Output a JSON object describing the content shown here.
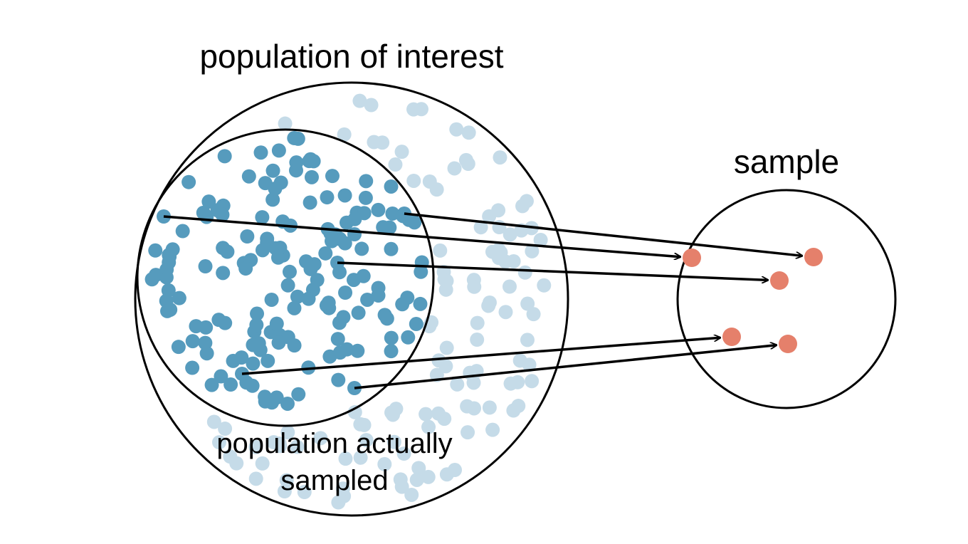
{
  "labels": {
    "population_of_interest": "population of interest",
    "sample": "sample",
    "population_actually_sampled_line1": "population actually",
    "population_actually_sampled_line2": "sampled"
  },
  "colors": {
    "background": "#ffffff",
    "outline": "#000000",
    "sampled_population_dot": "#569bbd",
    "unsampled_population_dot": "#c5dbe8",
    "sample_dot": "#e5806b",
    "arrow": "#000000"
  },
  "counts": {
    "sampled_arrows": 5,
    "sample_points": 5
  }
}
